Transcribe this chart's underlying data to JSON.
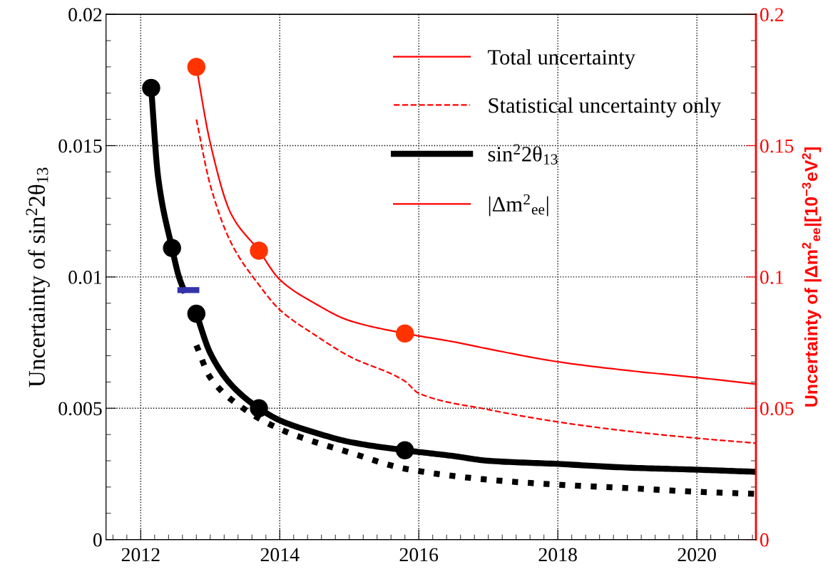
{
  "chart_data": {
    "type": "line",
    "ylabel": "Uncertainty of sin$^{2}$2θ$_{13}$",
    "y2label": "Uncertainty of |Δm$^{2}$$_{ee}$|[10$^{−3}$eV$^{2}$]",
    "xlim": [
      2011.5,
      2020.85
    ],
    "xticks": [
      2012,
      2014,
      2016,
      2018,
      2020
    ],
    "ylim": [
      0,
      0.02
    ],
    "yticks": [
      0,
      0.005,
      0.01,
      0.015,
      0.02
    ],
    "y2lim": [
      0,
      0.2
    ],
    "y2ticks": [
      0,
      0.05,
      0.1,
      0.15,
      0.2
    ],
    "grid": true,
    "legend": "top right",
    "series": [
      {
        "name": "Total uncertainty",
        "color": "#ff0000",
        "axis": "y2",
        "line_style": "solid"
      },
      {
        "name": "Statistical uncertainty only",
        "color": "#ff0000",
        "axis": "y2",
        "line_style": "dashed",
        "x": [
          2012.8,
          2013.0,
          2013.3,
          2013.7,
          2014.0,
          2014.5,
          2015.0,
          2015.8,
          2016.0,
          2017.0,
          2018.0,
          2019.0,
          2020.0,
          2020.85
        ],
        "values": [
          0.16,
          0.135,
          0.113,
          0.097,
          0.0875,
          0.078,
          0.0698,
          0.0603,
          0.0557,
          0.0495,
          0.0448,
          0.0413,
          0.0386,
          0.0367
        ]
      },
      {
        "name": "sin$^{2}$2θ$_{13}$",
        "color": "#000000",
        "line_style": "solid",
        "x": [
          2012.15,
          2012.25,
          2012.45,
          2012.55,
          2012.62,
          2012.7,
          2012.8,
          2013.0,
          2013.3,
          2013.7,
          2014.0,
          2014.5,
          2015.0,
          2015.8,
          2016.5,
          2017.0,
          2018.0,
          2019.0,
          2020.0,
          2020.85
        ],
        "values": [
          0.0172,
          0.0138,
          0.0111,
          0.01,
          0.0095,
          null,
          0.0086,
          0.0071,
          0.0059,
          0.005,
          0.00454,
          0.00408,
          0.00372,
          0.0034,
          0.00318,
          0.003,
          0.00288,
          0.00274,
          0.00266,
          0.00258
        ]
      },
      {
        "name": "|Δm$^{2}$$_{ee}$|",
        "color": "#ff0000",
        "axis": "y2",
        "line_style": "solid",
        "x": [
          2012.8,
          2013.0,
          2013.3,
          2013.7,
          2014.0,
          2014.5,
          2015.0,
          2015.8,
          2016.5,
          2017.0,
          2018.0,
          2019.0,
          2020.0,
          2020.85
        ],
        "values": [
          0.18,
          0.151,
          0.124,
          0.11,
          0.099,
          0.09,
          0.0834,
          0.0785,
          0.0753,
          0.0726,
          0.0677,
          0.0644,
          0.0617,
          0.0592
        ]
      },
      {
        "color": "#000000",
        "line_style": "dotted",
        "x": [
          2012.8,
          2013.0,
          2013.5,
          2014.0,
          2014.5,
          2015.0,
          2015.8,
          2017.0,
          2018.0,
          2019.0,
          2020.0,
          2020.85
        ],
        "values": [
          0.0074,
          0.00617,
          0.00495,
          0.00421,
          0.00372,
          0.00332,
          0.0027,
          0.00228,
          0.00209,
          0.00196,
          0.00182,
          0.00174
        ]
      },
      {
        "color": "#3333aa",
        "line_style": "solid",
        "x": [
          2012.57,
          2012.8
        ],
        "values": [
          0.0095,
          0.0095
        ]
      },
      {
        "type": "scatter",
        "color": "#000000",
        "marker": "circle",
        "x": [
          2012.15,
          2012.45,
          2012.8,
          2013.7,
          2015.8
        ],
        "values": [
          0.0172,
          0.0111,
          0.0086,
          0.005,
          0.0034
        ]
      },
      {
        "type": "scatter",
        "color": "#ff3300",
        "marker": "circle",
        "axis": "y2",
        "x": [
          2012.8,
          2013.7,
          2015.8
        ],
        "values": [
          0.18,
          0.11,
          0.0785
        ]
      }
    ]
  }
}
